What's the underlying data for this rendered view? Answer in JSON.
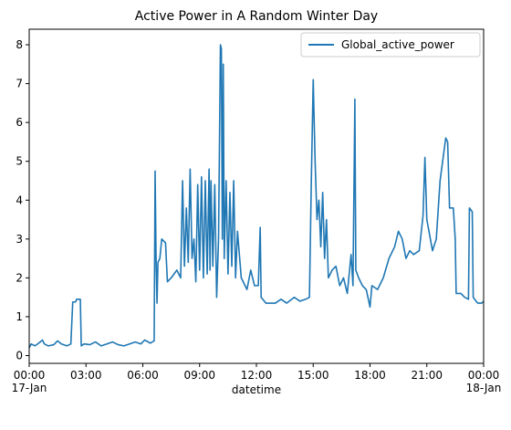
{
  "chart_data": {
    "type": "line",
    "title": "Active Power in A Random Winter Day",
    "xlabel": "datetime",
    "ylabel": "",
    "xlim_hours": [
      0,
      24
    ],
    "ylim": [
      -0.2,
      8.4
    ],
    "grid": false,
    "legend_position": "top-right",
    "x_ticks": [
      {
        "hour": 0,
        "label": "00:00",
        "sublabel": "17-Jan"
      },
      {
        "hour": 3,
        "label": "03:00",
        "sublabel": ""
      },
      {
        "hour": 6,
        "label": "06:00",
        "sublabel": ""
      },
      {
        "hour": 9,
        "label": "09:00",
        "sublabel": ""
      },
      {
        "hour": 12,
        "label": "12:00",
        "sublabel": ""
      },
      {
        "hour": 15,
        "label": "15:00",
        "sublabel": ""
      },
      {
        "hour": 18,
        "label": "18:00",
        "sublabel": ""
      },
      {
        "hour": 21,
        "label": "21:00",
        "sublabel": ""
      },
      {
        "hour": 24,
        "label": "00:00",
        "sublabel": "18-Jan"
      }
    ],
    "y_ticks": [
      0,
      1,
      2,
      3,
      4,
      5,
      6,
      7,
      8
    ],
    "series": [
      {
        "name": "Global_active_power",
        "color": "#1f77b4",
        "points": [
          [
            0.0,
            0.2
          ],
          [
            0.1,
            0.3
          ],
          [
            0.3,
            0.25
          ],
          [
            0.5,
            0.32
          ],
          [
            0.7,
            0.4
          ],
          [
            0.8,
            0.3
          ],
          [
            1.0,
            0.25
          ],
          [
            1.3,
            0.28
          ],
          [
            1.5,
            0.38
          ],
          [
            1.7,
            0.3
          ],
          [
            2.0,
            0.25
          ],
          [
            2.2,
            0.3
          ],
          [
            2.3,
            1.38
          ],
          [
            2.45,
            1.38
          ],
          [
            2.5,
            1.45
          ],
          [
            2.7,
            1.45
          ],
          [
            2.75,
            0.25
          ],
          [
            2.9,
            0.3
          ],
          [
            3.2,
            0.28
          ],
          [
            3.5,
            0.35
          ],
          [
            3.8,
            0.25
          ],
          [
            4.1,
            0.3
          ],
          [
            4.4,
            0.35
          ],
          [
            4.7,
            0.28
          ],
          [
            5.0,
            0.25
          ],
          [
            5.3,
            0.3
          ],
          [
            5.6,
            0.35
          ],
          [
            5.9,
            0.3
          ],
          [
            6.1,
            0.4
          ],
          [
            6.4,
            0.32
          ],
          [
            6.6,
            0.38
          ],
          [
            6.65,
            4.75
          ],
          [
            6.7,
            2.5
          ],
          [
            6.75,
            1.35
          ],
          [
            6.8,
            2.4
          ],
          [
            6.9,
            2.5
          ],
          [
            7.0,
            3.0
          ],
          [
            7.2,
            2.9
          ],
          [
            7.3,
            1.9
          ],
          [
            7.5,
            2.0
          ],
          [
            7.8,
            2.2
          ],
          [
            8.0,
            2.0
          ],
          [
            8.1,
            4.5
          ],
          [
            8.2,
            2.3
          ],
          [
            8.3,
            3.8
          ],
          [
            8.4,
            2.4
          ],
          [
            8.5,
            4.8
          ],
          [
            8.6,
            2.5
          ],
          [
            8.7,
            3.0
          ],
          [
            8.8,
            1.9
          ],
          [
            8.9,
            4.4
          ],
          [
            9.0,
            2.2
          ],
          [
            9.1,
            4.6
          ],
          [
            9.2,
            2.0
          ],
          [
            9.3,
            4.5
          ],
          [
            9.4,
            2.1
          ],
          [
            9.5,
            4.8
          ],
          [
            9.55,
            2.2
          ],
          [
            9.6,
            4.5
          ],
          [
            9.7,
            2.3
          ],
          [
            9.8,
            4.4
          ],
          [
            9.9,
            1.5
          ],
          [
            10.0,
            3.0
          ],
          [
            10.1,
            8.0
          ],
          [
            10.15,
            7.9
          ],
          [
            10.2,
            3.0
          ],
          [
            10.25,
            7.5
          ],
          [
            10.3,
            2.5
          ],
          [
            10.4,
            4.5
          ],
          [
            10.5,
            2.1
          ],
          [
            10.6,
            4.2
          ],
          [
            10.7,
            2.3
          ],
          [
            10.8,
            4.5
          ],
          [
            10.9,
            2.0
          ],
          [
            11.0,
            3.2
          ],
          [
            11.2,
            2.0
          ],
          [
            11.5,
            1.7
          ],
          [
            11.7,
            2.2
          ],
          [
            11.9,
            1.8
          ],
          [
            12.1,
            1.8
          ],
          [
            12.2,
            3.3
          ],
          [
            12.25,
            1.5
          ],
          [
            12.5,
            1.35
          ],
          [
            13.0,
            1.35
          ],
          [
            13.3,
            1.45
          ],
          [
            13.6,
            1.35
          ],
          [
            14.0,
            1.5
          ],
          [
            14.3,
            1.4
          ],
          [
            14.6,
            1.45
          ],
          [
            14.8,
            1.5
          ],
          [
            14.9,
            4.5
          ],
          [
            15.0,
            7.1
          ],
          [
            15.1,
            5.0
          ],
          [
            15.2,
            3.5
          ],
          [
            15.3,
            4.0
          ],
          [
            15.4,
            2.8
          ],
          [
            15.5,
            4.2
          ],
          [
            15.6,
            2.5
          ],
          [
            15.7,
            3.5
          ],
          [
            15.8,
            2.0
          ],
          [
            16.0,
            2.2
          ],
          [
            16.2,
            2.3
          ],
          [
            16.4,
            1.8
          ],
          [
            16.6,
            2.0
          ],
          [
            16.8,
            1.6
          ],
          [
            17.0,
            2.6
          ],
          [
            17.1,
            1.8
          ],
          [
            17.2,
            6.6
          ],
          [
            17.25,
            2.2
          ],
          [
            17.4,
            2.0
          ],
          [
            17.6,
            1.8
          ],
          [
            17.8,
            1.7
          ],
          [
            18.0,
            1.25
          ],
          [
            18.1,
            1.8
          ],
          [
            18.4,
            1.7
          ],
          [
            18.7,
            2.0
          ],
          [
            19.0,
            2.5
          ],
          [
            19.3,
            2.8
          ],
          [
            19.5,
            3.2
          ],
          [
            19.7,
            3.0
          ],
          [
            19.9,
            2.5
          ],
          [
            20.1,
            2.7
          ],
          [
            20.3,
            2.6
          ],
          [
            20.6,
            2.7
          ],
          [
            20.8,
            3.6
          ],
          [
            20.9,
            5.1
          ],
          [
            21.0,
            3.5
          ],
          [
            21.3,
            2.7
          ],
          [
            21.5,
            3.0
          ],
          [
            21.7,
            4.5
          ],
          [
            22.0,
            5.6
          ],
          [
            22.1,
            5.5
          ],
          [
            22.2,
            3.8
          ],
          [
            22.4,
            3.8
          ],
          [
            22.5,
            3.0
          ],
          [
            22.55,
            1.6
          ],
          [
            22.8,
            1.6
          ],
          [
            23.0,
            1.5
          ],
          [
            23.2,
            1.45
          ],
          [
            23.25,
            3.8
          ],
          [
            23.4,
            3.7
          ],
          [
            23.45,
            1.5
          ],
          [
            23.6,
            1.4
          ],
          [
            23.7,
            1.35
          ],
          [
            23.9,
            1.35
          ],
          [
            24.0,
            1.4
          ]
        ]
      }
    ]
  }
}
